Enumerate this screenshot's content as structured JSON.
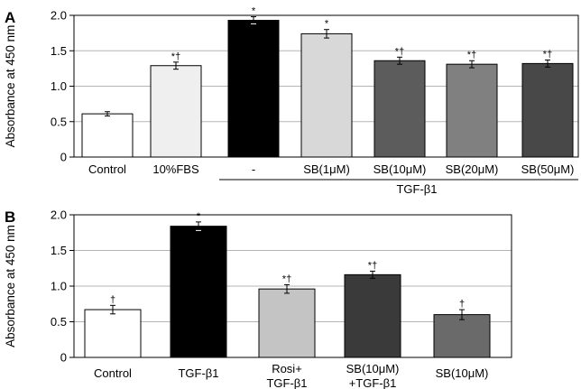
{
  "chart_data": [
    {
      "type": "bar",
      "panel_label": "A",
      "ylabel": "Absorbance at 450 nm",
      "ylim": [
        0,
        2.0
      ],
      "yticks": [
        "0",
        "0.5",
        "1.0",
        "1.5",
        "2.0"
      ],
      "grid": true,
      "categories": [
        "Control",
        "10%FBS",
        "-",
        "SB(1μM)",
        "SB(10μM)",
        "SB(20μM)",
        "SB(50μM)"
      ],
      "values": [
        0.61,
        1.29,
        1.93,
        1.74,
        1.36,
        1.31,
        1.32
      ],
      "errors": [
        0.03,
        0.05,
        0.05,
        0.06,
        0.05,
        0.05,
        0.05
      ],
      "significance": [
        "",
        "*†",
        "*",
        "*",
        "*†",
        "*†",
        "*†"
      ],
      "bar_colors": [
        "#ffffff",
        "#efefef",
        "#000000",
        "#d8d8d8",
        "#5c5c5c",
        "#808080",
        "#484848"
      ],
      "group_label": "TGF-β1",
      "group_span": [
        2,
        6
      ]
    },
    {
      "type": "bar",
      "panel_label": "B",
      "ylabel": "Absorbance at 450 nm",
      "ylim": [
        0,
        2.0
      ],
      "yticks": [
        "0",
        "0.5",
        "1.0",
        "1.5",
        "2.0"
      ],
      "grid": true,
      "categories": [
        [
          "Control"
        ],
        [
          "TGF-β1"
        ],
        [
          "Rosi+",
          "TGF-β1"
        ],
        [
          "SB(10μM)",
          "+TGF-β1"
        ],
        [
          "SB(10μM)"
        ]
      ],
      "values": [
        0.67,
        1.84,
        0.96,
        1.16,
        0.6
      ],
      "errors": [
        0.06,
        0.06,
        0.06,
        0.05,
        0.07
      ],
      "significance": [
        "†",
        "*",
        "*†",
        "*†",
        "†"
      ],
      "bar_colors": [
        "#ffffff",
        "#000000",
        "#c4c4c4",
        "#3a3a3a",
        "#6a6a6a"
      ]
    }
  ]
}
